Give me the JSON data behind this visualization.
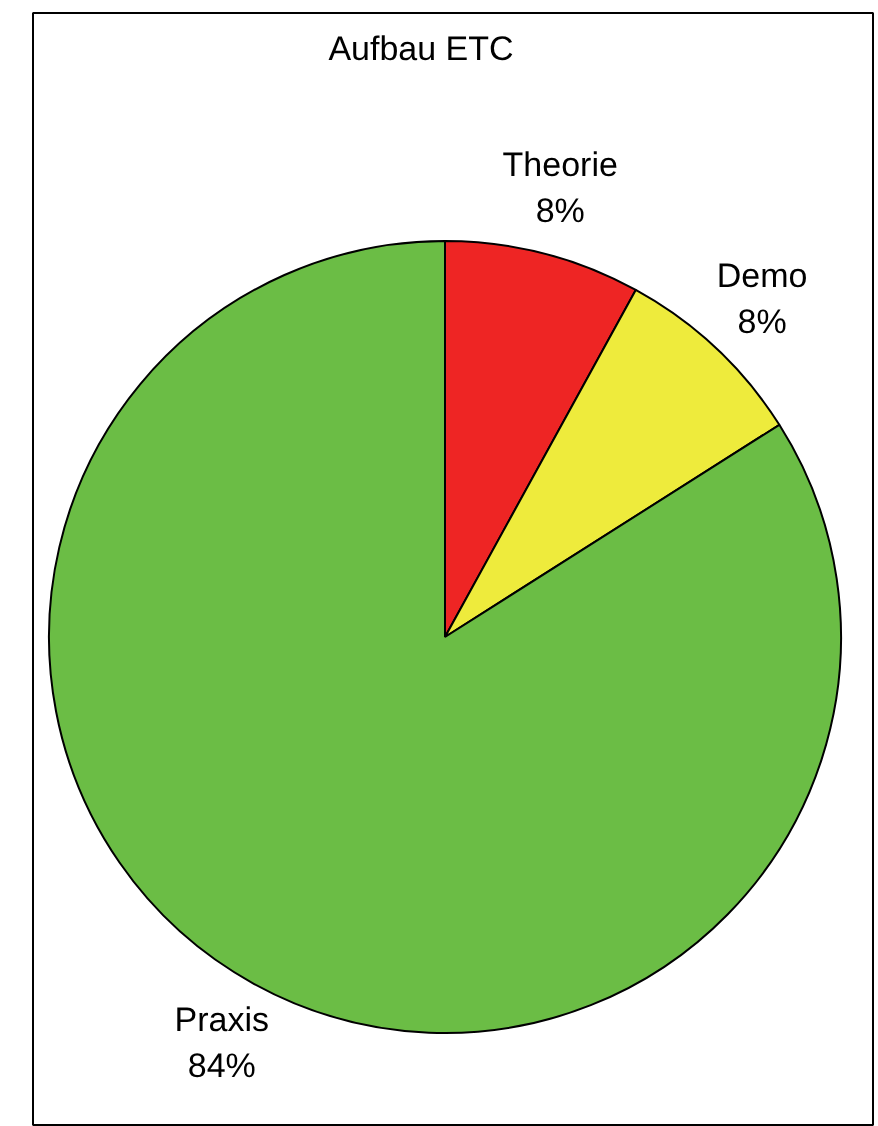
{
  "chart_data": {
    "type": "pie",
    "title": "Aufbau ETC",
    "categories": [
      "Theorie",
      "Demo",
      "Praxis"
    ],
    "values": [
      8,
      8,
      84
    ],
    "value_labels": [
      "8%",
      "8%",
      "84%"
    ],
    "colors": [
      "#ee2524",
      "#eeeb3c",
      "#6bbd45"
    ]
  }
}
